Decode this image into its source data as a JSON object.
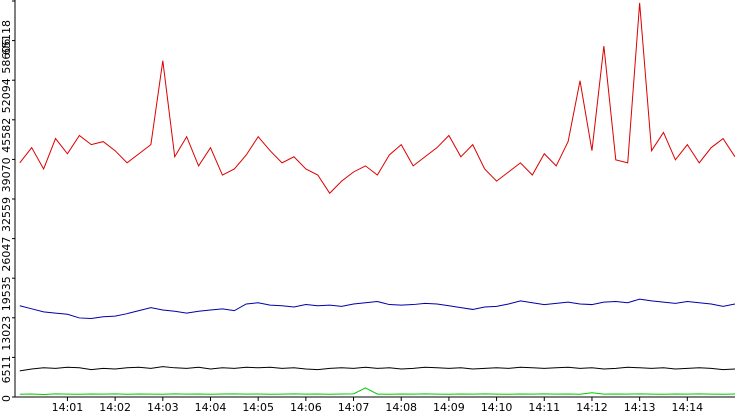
{
  "chart_data": {
    "type": "line",
    "xlim": [
      839.9,
      855
    ],
    "xticks": [
      {
        "value": 841,
        "label": "14:01"
      },
      {
        "value": 842,
        "label": "14:02"
      },
      {
        "value": 843,
        "label": "14:03"
      },
      {
        "value": 844,
        "label": "14:04"
      },
      {
        "value": 845,
        "label": "14:05"
      },
      {
        "value": 846,
        "label": "14:06"
      },
      {
        "value": 847,
        "label": "14:07"
      },
      {
        "value": 848,
        "label": "14:08"
      },
      {
        "value": 849,
        "label": "14:09"
      },
      {
        "value": 850,
        "label": "14:10"
      },
      {
        "value": 851,
        "label": "14:11"
      },
      {
        "value": 852,
        "label": "14:12"
      },
      {
        "value": 853,
        "label": "14:13"
      },
      {
        "value": 854,
        "label": "14:14"
      }
    ],
    "ylim": [
      0,
      65118
    ],
    "yticks": [
      0,
      6511,
      13023,
      19535,
      26047,
      32559,
      39070,
      45582,
      52094,
      58606,
      65118
    ],
    "x": [
      840,
      840.25,
      840.5,
      840.75,
      841,
      841.25,
      841.5,
      841.75,
      842,
      842.25,
      842.5,
      842.75,
      843,
      843.25,
      843.5,
      843.75,
      844,
      844.25,
      844.5,
      844.75,
      845,
      845.25,
      845.5,
      845.75,
      846,
      846.25,
      846.5,
      846.75,
      847,
      847.25,
      847.5,
      847.75,
      848,
      848.25,
      848.5,
      848.75,
      849,
      849.25,
      849.5,
      849.75,
      850,
      850.25,
      850.5,
      850.75,
      851,
      851.25,
      851.5,
      851.75,
      852,
      852.25,
      852.5,
      852.75,
      853,
      853.25,
      853.5,
      853.75,
      854,
      854.25,
      854.5,
      854.75,
      855
    ],
    "series": [
      {
        "color": "#dd0000",
        "values": [
          38500,
          41000,
          37500,
          42500,
          40000,
          43000,
          41500,
          42000,
          40500,
          38500,
          40000,
          41500,
          55300,
          39500,
          42800,
          38000,
          41000,
          36500,
          37500,
          39800,
          42800,
          40500,
          38500,
          39500,
          37500,
          36500,
          33500,
          35500,
          37000,
          38000,
          36500,
          39800,
          41500,
          38000,
          39500,
          41000,
          43000,
          39500,
          41500,
          37500,
          35500,
          37000,
          38500,
          36500,
          40000,
          38000,
          42000,
          52000,
          40500,
          57700,
          39000,
          38500,
          64800,
          40500,
          43500,
          39000,
          41500,
          38500,
          41000,
          42500,
          39500
        ]
      },
      {
        "color": "#0000aa",
        "values": [
          15000,
          14500,
          14000,
          13800,
          13600,
          13000,
          12900,
          13200,
          13300,
          13700,
          14200,
          14700,
          14300,
          14100,
          13800,
          14100,
          14300,
          14500,
          14200,
          15300,
          15500,
          15100,
          15000,
          14800,
          15200,
          15000,
          15100,
          14900,
          15300,
          15500,
          15700,
          15200,
          15100,
          15200,
          15400,
          15300,
          15000,
          14700,
          14400,
          14800,
          14900,
          15300,
          15800,
          15500,
          15200,
          15400,
          15600,
          15300,
          15200,
          15600,
          15700,
          15500,
          16100,
          15800,
          15600,
          15400,
          15700,
          15500,
          15300,
          14900,
          15300
        ]
      },
      {
        "color": "#000000",
        "values": [
          4300,
          4600,
          4800,
          4700,
          4900,
          4800,
          4500,
          4700,
          4600,
          4800,
          4900,
          4700,
          5000,
          4800,
          4700,
          4900,
          4600,
          4800,
          4700,
          4900,
          4800,
          4900,
          4700,
          4800,
          4600,
          4500,
          4700,
          4800,
          4700,
          4900,
          4700,
          4800,
          4600,
          4700,
          4900,
          4800,
          4700,
          4800,
          4600,
          4700,
          4800,
          4700,
          4900,
          4800,
          4700,
          4800,
          4900,
          4700,
          4800,
          4600,
          4700,
          4900,
          4800,
          4700,
          4800,
          4600,
          4700,
          4800,
          4700,
          4500,
          4600
        ]
      },
      {
        "color": "#00cc00",
        "values": [
          450,
          500,
          420,
          520,
          480,
          450,
          500,
          470,
          520,
          460,
          500,
          480,
          450,
          520,
          470,
          500,
          460,
          490,
          520,
          470,
          500,
          450,
          480,
          510,
          470,
          500,
          460,
          490,
          520,
          1500,
          480,
          460,
          500,
          470,
          520,
          480,
          450,
          500,
          470,
          510,
          480,
          460,
          500,
          470,
          520,
          480,
          500,
          460,
          700,
          480,
          500,
          470,
          520,
          480,
          460,
          500,
          470,
          510,
          480,
          460,
          500
        ]
      }
    ]
  }
}
